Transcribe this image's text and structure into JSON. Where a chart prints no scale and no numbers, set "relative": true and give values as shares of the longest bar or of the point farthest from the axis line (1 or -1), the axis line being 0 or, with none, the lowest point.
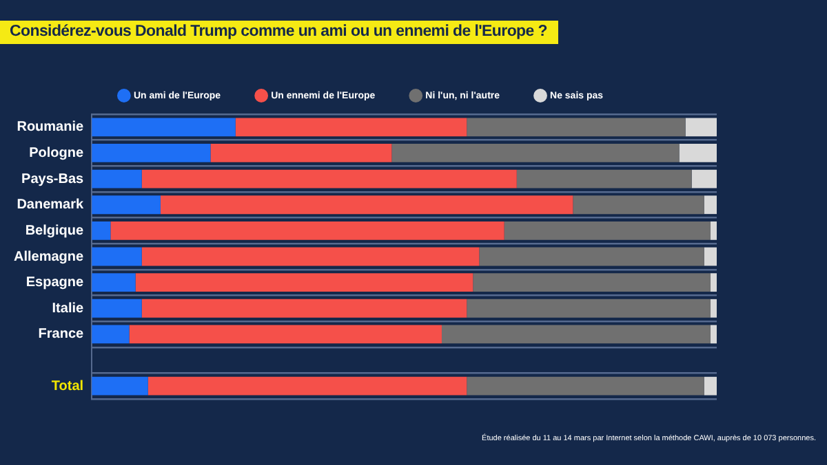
{
  "chart_data": {
    "type": "bar",
    "orientation": "horizontal",
    "stacked": true,
    "relative": true,
    "title": "Considérez-vous Donald Trump comme un ami ou un ennemi de l'Europe ?",
    "categories": [
      "Roumanie",
      "Pologne",
      "Pays-Bas",
      "Danemark",
      "Belgique",
      "Allemagne",
      "Espagne",
      "Italie",
      "France",
      null,
      "Total"
    ],
    "series": [
      {
        "name": "Un ami de l'Europe",
        "color": "#1e6ff5",
        "values": [
          0.23,
          0.19,
          0.08,
          0.11,
          0.03,
          0.08,
          0.07,
          0.08,
          0.06,
          null,
          0.09
        ]
      },
      {
        "name": "Un ennemi de l'Europe",
        "color": "#f5504a",
        "values": [
          0.37,
          0.29,
          0.6,
          0.66,
          0.63,
          0.54,
          0.54,
          0.52,
          0.5,
          null,
          0.51
        ]
      },
      {
        "name": "Ni l'un, ni l'autre",
        "color": "#707070",
        "values": [
          0.35,
          0.46,
          0.28,
          0.21,
          0.33,
          0.36,
          0.38,
          0.39,
          0.43,
          null,
          0.38
        ]
      },
      {
        "name": "Ne sais pas",
        "color": "#d9d9d9",
        "values": [
          0.05,
          0.06,
          0.04,
          0.02,
          0.01,
          0.02,
          0.01,
          0.01,
          0.01,
          null,
          0.02
        ]
      }
    ],
    "legend": "top",
    "grid": "y",
    "annotations": [
      "Étude réalisée du 11 au 14 mars par Internet selon la méthode CAWI, auprès de 10 073 personnes."
    ]
  }
}
